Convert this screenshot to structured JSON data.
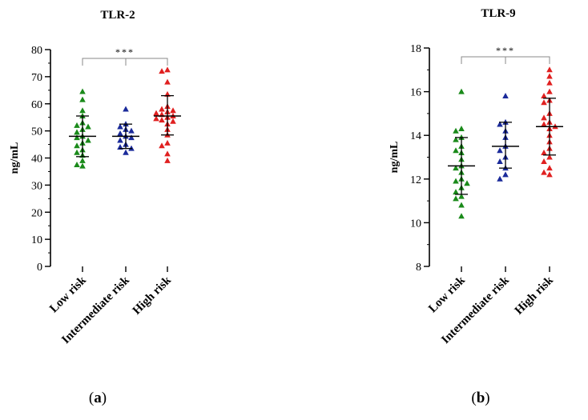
{
  "chart_data": [
    {
      "type": "scatter",
      "title": "TLR-2",
      "ylabel": "ng/mL",
      "xlabel": "",
      "ylim": [
        0,
        80
      ],
      "yticks": [
        0,
        10,
        20,
        30,
        40,
        50,
        60,
        70,
        80
      ],
      "categories": [
        "Low risk",
        "Intermediate risk",
        "High risk"
      ],
      "significance": "***",
      "panel_label": "(a)",
      "series": [
        {
          "category": "Low risk",
          "color": "#1a8a1a",
          "marker": "triangle",
          "mean": 48.0,
          "sd_low": 40.5,
          "sd_high": 55.5,
          "values": [
            64.5,
            61.5,
            57.5,
            55.5,
            53.0,
            52.0,
            51.5,
            50.5,
            49.5,
            48.0,
            47.5,
            46.5,
            45.5,
            44.5,
            43.0,
            42.0,
            41.0,
            39.0,
            37.5,
            37.0
          ]
        },
        {
          "category": "Intermediate risk",
          "color": "#1a2a9a",
          "marker": "triangle",
          "mean": 48.0,
          "sd_low": 43.5,
          "sd_high": 52.5,
          "values": [
            58.0,
            52.5,
            51.5,
            50.5,
            50.0,
            49.0,
            48.0,
            47.5,
            46.5,
            45.0,
            44.0,
            43.5,
            42.0
          ]
        },
        {
          "category": "High risk",
          "color": "#e02020",
          "marker": "triangle",
          "mean": 55.5,
          "sd_low": 48.5,
          "sd_high": 63.0,
          "values": [
            72.5,
            72.0,
            68.0,
            63.5,
            59.0,
            58.0,
            57.5,
            57.0,
            56.5,
            56.0,
            55.5,
            55.0,
            54.5,
            54.0,
            53.5,
            52.5,
            50.5,
            48.5,
            45.5,
            44.5,
            41.5,
            39.0
          ]
        }
      ]
    },
    {
      "type": "scatter",
      "title": "TLR-9",
      "ylabel": "ng/mL",
      "xlabel": "",
      "ylim": [
        8,
        18
      ],
      "yticks": [
        8,
        10,
        12,
        14,
        16,
        18
      ],
      "categories": [
        "Low risk",
        "Intermediate risk",
        "High risk"
      ],
      "significance": "***",
      "panel_label": "(b)",
      "series": [
        {
          "category": "Low risk",
          "color": "#1a8a1a",
          "marker": "triangle",
          "mean": 12.6,
          "sd_low": 11.3,
          "sd_high": 13.9,
          "values": [
            16.0,
            14.3,
            14.2,
            13.9,
            13.8,
            13.5,
            13.3,
            13.2,
            12.9,
            12.6,
            12.5,
            12.3,
            12.0,
            11.9,
            11.8,
            11.6,
            11.4,
            11.2,
            11.1,
            10.8,
            10.3
          ]
        },
        {
          "category": "Intermediate risk",
          "color": "#1a2a9a",
          "marker": "triangle",
          "mean": 13.5,
          "sd_low": 12.5,
          "sd_high": 14.6,
          "values": [
            15.8,
            14.6,
            14.5,
            14.2,
            13.9,
            13.5,
            13.3,
            13.0,
            12.8,
            12.5,
            12.2,
            12.0
          ]
        },
        {
          "category": "High risk",
          "color": "#e02020",
          "marker": "triangle",
          "mean": 14.4,
          "sd_low": 13.1,
          "sd_high": 15.7,
          "values": [
            17.0,
            16.7,
            16.4,
            16.0,
            15.8,
            15.6,
            15.5,
            15.0,
            14.8,
            14.6,
            14.5,
            14.4,
            14.3,
            14.0,
            13.7,
            13.4,
            13.2,
            13.0,
            12.8,
            12.5,
            12.3,
            12.2
          ]
        }
      ]
    }
  ]
}
